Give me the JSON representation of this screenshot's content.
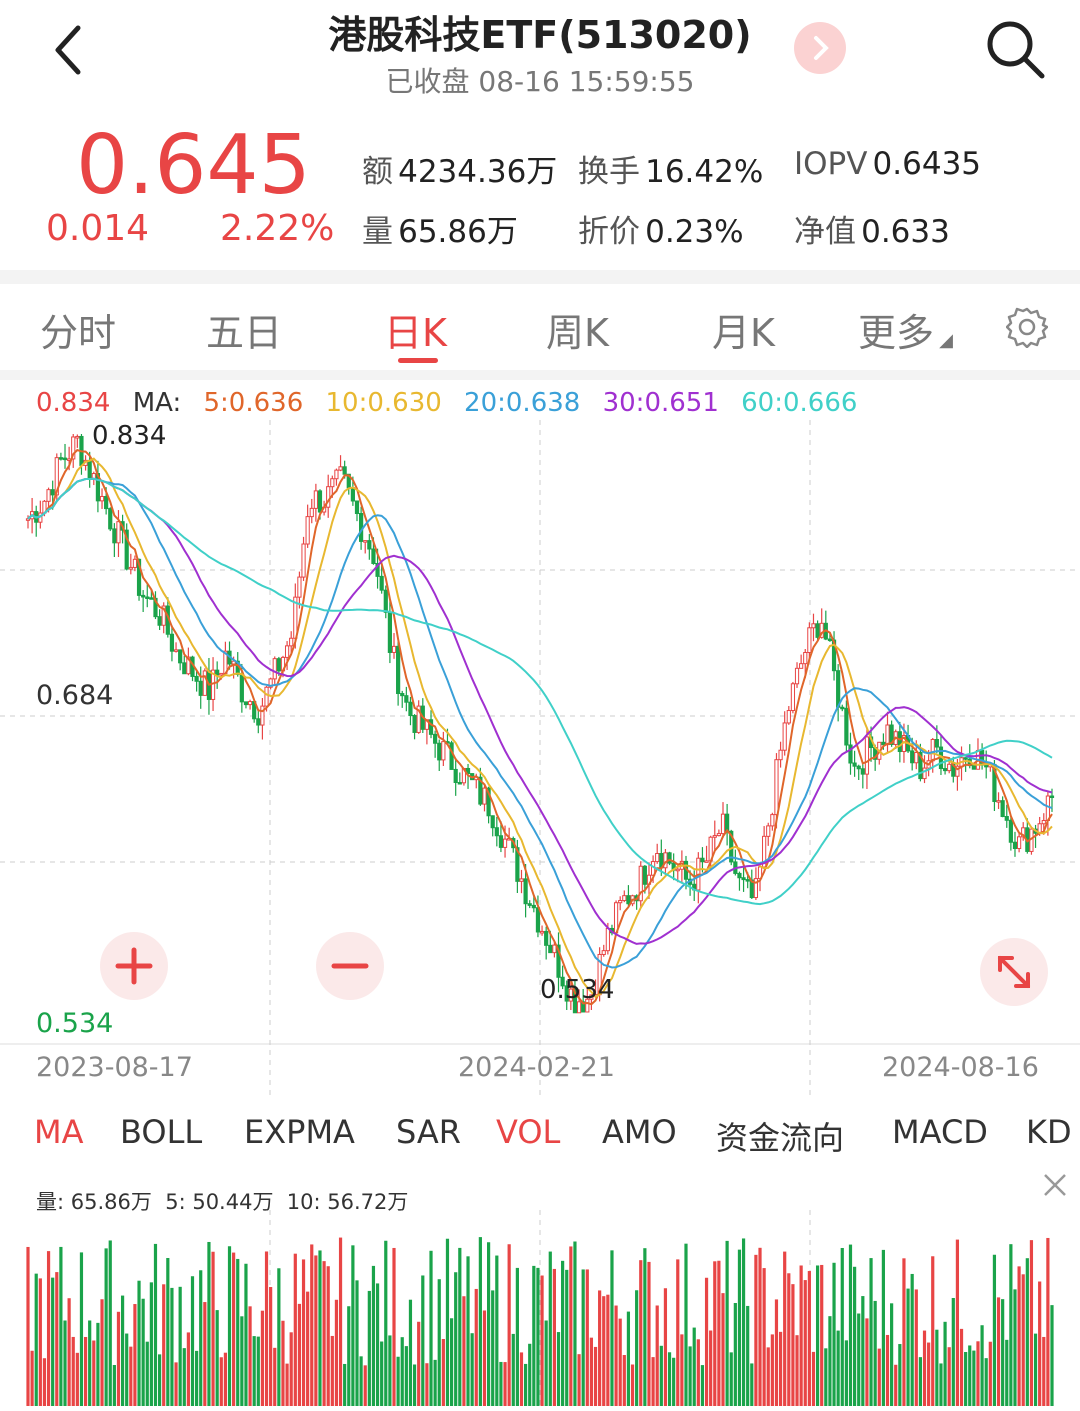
{
  "header": {
    "title": "港股科技ETF(513020)",
    "subtitle": "已收盘 08-16 15:59:55",
    "icons": {
      "back": "back-arrow-icon",
      "next": "chevron-right-icon",
      "search": "search-icon"
    }
  },
  "quote": {
    "price": "0.645",
    "change": "0.014",
    "change_pct": "2.22%",
    "stats": {
      "amount_label": "额",
      "amount": "4234.36万",
      "turnover_label": "换手",
      "turnover": "16.42%",
      "iopv_label": "IOPV",
      "iopv": "0.6435",
      "volume_label": "量",
      "volume": "65.86万",
      "discount_label": "折价",
      "discount": "0.23%",
      "nav_label": "净值",
      "nav": "0.633"
    }
  },
  "tabs": [
    "分时",
    "五日",
    "日K",
    "周K",
    "月K",
    "更多"
  ],
  "active_tab": "日K",
  "ma_legend": {
    "price": "0.834",
    "ma_label": "MA:",
    "ma5": "5:0.636",
    "ma10": "10:0.630",
    "ma20": "20:0.638",
    "ma30": "30:0.651",
    "ma60": "60:0.666"
  },
  "colors": {
    "up": "#e84545",
    "down": "#1aa34a",
    "ma5": "#e0662a",
    "ma10": "#e8b830",
    "ma20": "#3aa0d8",
    "ma30": "#a030d0",
    "ma60": "#40d0c8"
  },
  "axis": {
    "y_top": "0.834",
    "y_mid": "0.684",
    "y_bottom": "0.534",
    "x_start": "2023-08-17",
    "x_mid": "2024-02-21",
    "x_end": "2024-08-16",
    "max_label": "0.834",
    "min_label": "0.534"
  },
  "indicators": [
    "MA",
    "BOLL",
    "EXPMA",
    "SAR",
    "VOL",
    "AMO",
    "资金流向",
    "MACD",
    "KD"
  ],
  "active_indicators": [
    "MA",
    "VOL"
  ],
  "volume_legend": "量: 65.86万  5: 50.44万  10: 56.72万",
  "chart_data": {
    "type": "candlestick",
    "x_range": [
      "2023-08-17",
      "2024-08-16"
    ],
    "ylim": [
      0.534,
      0.834
    ],
    "high": 0.834,
    "low": 0.534,
    "ma_last": {
      "ma5": 0.636,
      "ma10": 0.63,
      "ma20": 0.638,
      "ma30": 0.651,
      "ma60": 0.666
    },
    "price_path": [
      0.79,
      0.8,
      0.82,
      0.83,
      0.81,
      0.79,
      0.77,
      0.75,
      0.74,
      0.72,
      0.71,
      0.7,
      0.72,
      0.7,
      0.69,
      0.71,
      0.73,
      0.8,
      0.8,
      0.81,
      0.79,
      0.77,
      0.72,
      0.69,
      0.68,
      0.67,
      0.66,
      0.65,
      0.64,
      0.62,
      0.6,
      0.58,
      0.56,
      0.54,
      0.54,
      0.57,
      0.59,
      0.6,
      0.62,
      0.61,
      0.6,
      0.61,
      0.63,
      0.6,
      0.59,
      0.64,
      0.69,
      0.72,
      0.74,
      0.7,
      0.66,
      0.67,
      0.68,
      0.67,
      0.66,
      0.67,
      0.66,
      0.67,
      0.66,
      0.64,
      0.62,
      0.63,
      0.645
    ]
  }
}
